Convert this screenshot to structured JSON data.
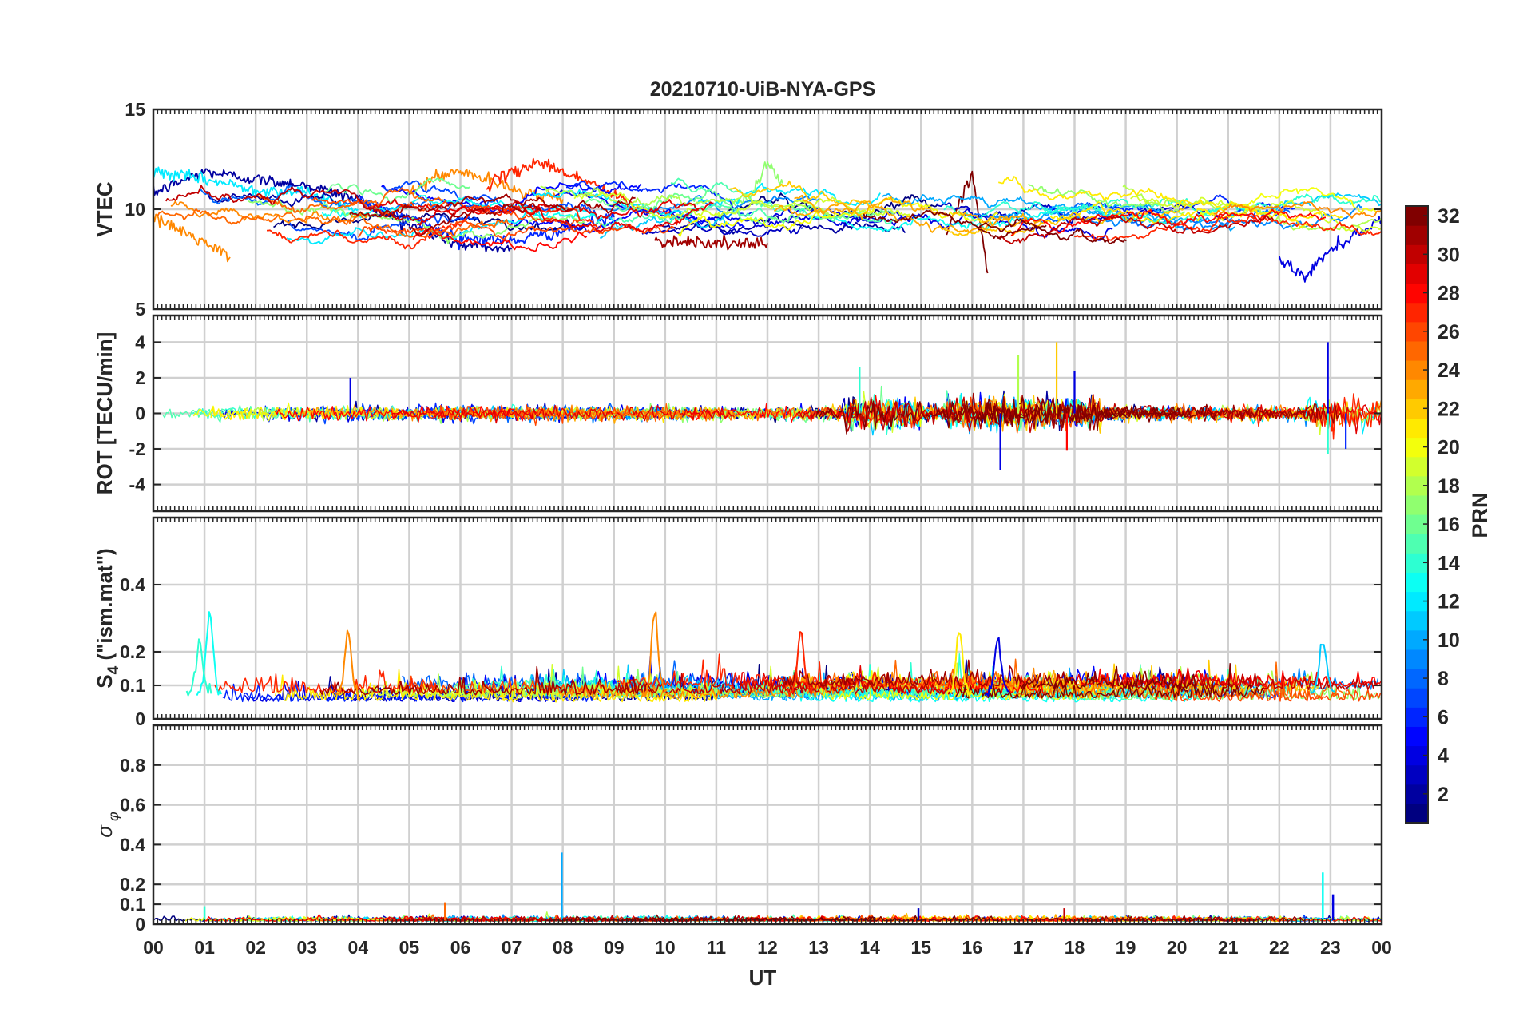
{
  "figure": {
    "title": "20210710-UiB-NYA-GPS",
    "xlabel": "UT",
    "x_tick_labels": [
      "00",
      "01",
      "02",
      "03",
      "04",
      "05",
      "06",
      "07",
      "08",
      "09",
      "10",
      "11",
      "12",
      "13",
      "14",
      "15",
      "16",
      "17",
      "18",
      "19",
      "20",
      "21",
      "22",
      "23",
      "00"
    ]
  },
  "colorbar": {
    "label": "PRN",
    "range": [
      1,
      32
    ],
    "tick_labels": [
      "2",
      "4",
      "6",
      "8",
      "10",
      "12",
      "14",
      "16",
      "18",
      "20",
      "22",
      "24",
      "26",
      "28",
      "30",
      "32"
    ],
    "colormap": "jet",
    "colors": [
      "#00008f",
      "#0000ff",
      "#0080ff",
      "#00ffff",
      "#80ff80",
      "#ffff00",
      "#ff8000",
      "#ff0000",
      "#800000"
    ]
  },
  "chart_data": [
    {
      "type": "line",
      "panel": "VTEC",
      "ylabel": "VTEC",
      "ylim": [
        5,
        15
      ],
      "y_ticks": [
        5,
        10,
        15
      ],
      "y_tick_labels": [
        "5",
        "10",
        "15"
      ],
      "xlim_hours": [
        0,
        24
      ],
      "grid": true,
      "note_series": "about 32 GPS satellite tracks, colored by PRN",
      "series_summary": [
        {
          "prn": 2,
          "x_hours": [
            0,
            1,
            2,
            3,
            4,
            5,
            6,
            7
          ],
          "values": [
            10.8,
            11.9,
            11.5,
            11.2,
            10.5,
            9.2,
            8.2,
            8.0
          ]
        },
        {
          "prn": 6,
          "x_hours": [
            4,
            5,
            6,
            7,
            8,
            9
          ],
          "values": [
            10.5,
            9.5,
            8.6,
            8.4,
            8.9,
            9.6
          ]
        },
        {
          "prn": 12,
          "x_hours": [
            0,
            1,
            2,
            3,
            4
          ],
          "values": [
            11.9,
            11.5,
            11.0,
            10.8,
            10.0
          ]
        },
        {
          "prn": 17,
          "x_hours": [
            11,
            11.7,
            12,
            12.3
          ],
          "values": [
            9.5,
            10.8,
            12.4,
            11.3
          ]
        },
        {
          "prn": 24,
          "x_hours": [
            0,
            0.5,
            1,
            1.5
          ],
          "values": [
            9.5,
            9.0,
            8.3,
            7.6
          ]
        },
        {
          "prn": 24,
          "x_hours": [
            5,
            5.5,
            6,
            6.5,
            7,
            8
          ],
          "values": [
            10.8,
            11.6,
            11.9,
            11.5,
            11.0,
            10.5
          ]
        },
        {
          "prn": 27,
          "x_hours": [
            6.5,
            7.5,
            8.5,
            9.5,
            10.5
          ],
          "values": [
            11.2,
            12.4,
            11.4,
            10.0,
            9.5
          ]
        },
        {
          "prn": 31,
          "x_hours": [
            9.8,
            10.5,
            11.5,
            12
          ],
          "values": [
            8.4,
            8.4,
            8.2,
            8.3
          ]
        },
        {
          "prn": 32,
          "x_hours": [
            15.5,
            16,
            16.3
          ],
          "values": [
            8.9,
            11.8,
            6.8
          ]
        },
        {
          "prn": 4,
          "x_hours": [
            22,
            22.5,
            23,
            24
          ],
          "values": [
            7.5,
            6.6,
            8.0,
            9.5
          ]
        }
      ]
    },
    {
      "type": "line",
      "panel": "ROT",
      "ylabel": "ROT [TECU/min]",
      "ylim": [
        -5.5,
        5.5
      ],
      "y_ticks": [
        -4,
        -2,
        0,
        2,
        4
      ],
      "y_tick_labels": [
        "-4",
        "-2",
        "0",
        "2",
        "4"
      ],
      "xlim_hours": [
        0,
        24
      ],
      "grid": true,
      "note_series": "rate of TEC noise around zero, typically within ±0.5 TECU/min",
      "spikes": [
        {
          "x_hour": 3.85,
          "value": 2.0,
          "prn": 4
        },
        {
          "x_hour": 13.8,
          "value": 2.6,
          "prn": 14
        },
        {
          "x_hour": 16.55,
          "value": -3.2,
          "prn": 4
        },
        {
          "x_hour": 16.9,
          "value": 3.3,
          "prn": 18
        },
        {
          "x_hour": 17.65,
          "value": 4.0,
          "prn": 22
        },
        {
          "x_hour": 17.85,
          "value": -2.1,
          "prn": 28
        },
        {
          "x_hour": 18.0,
          "value": 2.4,
          "prn": 4
        },
        {
          "x_hour": 22.95,
          "value": 4.0,
          "prn": 4
        },
        {
          "x_hour": 22.95,
          "value": -2.3,
          "prn": 14
        },
        {
          "x_hour": 23.3,
          "value": -2.0,
          "prn": 6
        }
      ]
    },
    {
      "type": "line",
      "panel": "S4",
      "ylabel": "S4 (\"ism.mat\")",
      "ylim": [
        0,
        0.6
      ],
      "y_ticks": [
        0,
        0.1,
        0.2,
        0.4
      ],
      "y_tick_labels": [
        "0",
        "0.1",
        "0.2",
        "0.4"
      ],
      "xlim_hours": [
        0,
        24
      ],
      "grid": true,
      "note_series": "amplitude scintillation index, baseline 0.04–0.15",
      "peaks": [
        {
          "x_hour": 1.1,
          "value": 0.32,
          "prn": 13
        },
        {
          "x_hour": 3.8,
          "value": 0.26,
          "prn": 24
        },
        {
          "x_hour": 9.8,
          "value": 0.33,
          "prn": 24
        },
        {
          "x_hour": 12.65,
          "value": 0.26,
          "prn": 27
        },
        {
          "x_hour": 15.75,
          "value": 0.26,
          "prn": 21
        },
        {
          "x_hour": 16.5,
          "value": 0.24,
          "prn": 4
        },
        {
          "x_hour": 22.85,
          "value": 0.24,
          "prn": 11
        },
        {
          "x_hour": 0.9,
          "value": 0.24,
          "prn": 14
        }
      ]
    },
    {
      "type": "line",
      "panel": "sigma_phi",
      "ylabel": "σφ",
      "ylim": [
        0,
        1
      ],
      "y_ticks": [
        0,
        0.1,
        0.2,
        0.4,
        0.6,
        0.8
      ],
      "y_tick_labels": [
        "0",
        "0.1",
        "0.2",
        "0.4",
        "0.6",
        "0.8"
      ],
      "xlim_hours": [
        0,
        24
      ],
      "grid": true,
      "note_series": "phase scintillation index, baseline below 0.05",
      "peaks": [
        {
          "x_hour": 7.98,
          "value": 0.36,
          "prn": 10
        },
        {
          "x_hour": 22.85,
          "value": 0.26,
          "prn": 13
        },
        {
          "x_hour": 23.05,
          "value": 0.15,
          "prn": 4
        },
        {
          "x_hour": 5.7,
          "value": 0.11,
          "prn": 25
        },
        {
          "x_hour": 14.95,
          "value": 0.08,
          "prn": 3
        },
        {
          "x_hour": 1.0,
          "value": 0.09,
          "prn": 14
        },
        {
          "x_hour": 17.8,
          "value": 0.08,
          "prn": 30
        }
      ]
    }
  ]
}
